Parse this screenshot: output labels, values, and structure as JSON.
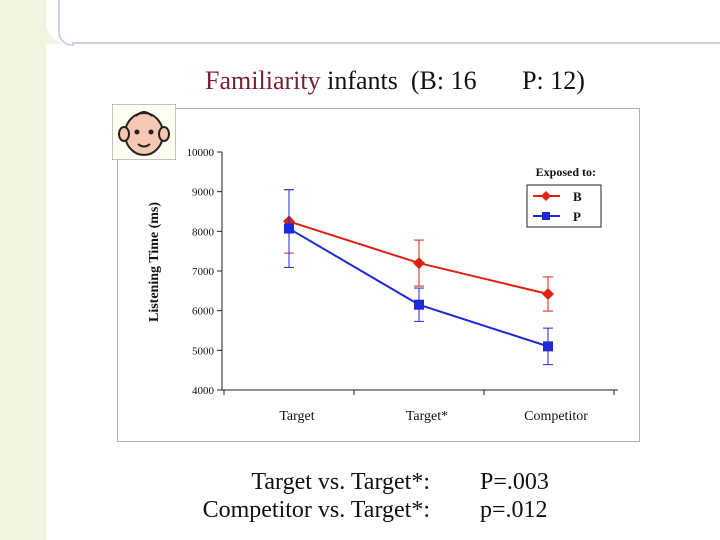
{
  "title": {
    "keyword": "Familiarity",
    "rest": " infants  (B: 16       P: 12)"
  },
  "chart_data": {
    "type": "line",
    "title": "Familiarity infants  (B: 16       P: 12)",
    "ylabel": "Listening Time (ms)",
    "xlabel": "",
    "categories": [
      "Target",
      "Target*",
      "Competitor"
    ],
    "ylim": [
      4000,
      10000
    ],
    "yticks": [
      4000,
      5000,
      6000,
      7000,
      8000,
      9000,
      10000
    ],
    "grid": false,
    "legend": {
      "title": "Exposed to:",
      "position": "top-right"
    },
    "series": [
      {
        "name": "B",
        "color": "#dd2211",
        "marker": "diamond",
        "values": [
          8250,
          7200,
          6420
        ],
        "error": [
          800,
          580,
          430
        ]
      },
      {
        "name": "P",
        "color": "#1f2ad6",
        "marker": "square",
        "values": [
          8070,
          6150,
          5100
        ],
        "error": [
          980,
          420,
          460
        ]
      }
    ]
  },
  "stats": {
    "line1_label": "Target vs. Target*:",
    "line2_label": "Competitor  vs. Target*:",
    "line1_value": "P=.003",
    "line2_value": "p=.012"
  }
}
